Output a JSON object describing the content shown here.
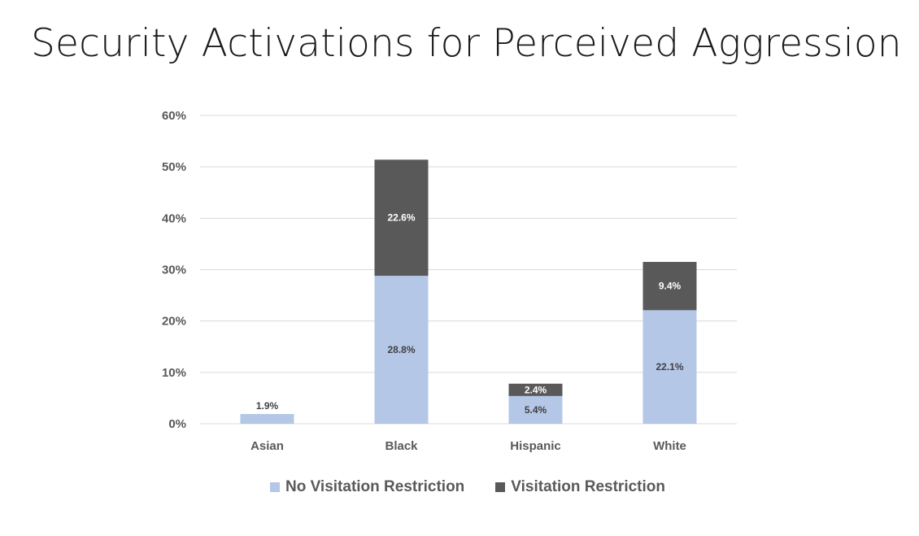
{
  "title": "Security Activations for Perceived Aggression",
  "colors": {
    "no_restriction": "#b4c7e7",
    "restriction": "#595959",
    "gridline": "#d9d9d9",
    "axis_text": "#595959"
  },
  "legend": [
    {
      "name": "No Visitation Restriction",
      "color": "#b4c7e7"
    },
    {
      "name": "Visitation Restriction",
      "color": "#595959"
    }
  ],
  "chart_data": {
    "type": "bar",
    "stacked": true,
    "title": "Security Activations for Perceived Aggression",
    "categories": [
      "Asian",
      "Black",
      "Hispanic",
      "White"
    ],
    "series": [
      {
        "name": "No Visitation Restriction",
        "values": [
          1.9,
          28.8,
          5.4,
          22.1
        ],
        "labels": [
          "1.9%",
          "28.8%",
          "5.4%",
          "22.1%"
        ]
      },
      {
        "name": "Visitation Restriction",
        "values": [
          0,
          22.6,
          2.4,
          9.4
        ],
        "labels": [
          "",
          "22.6%",
          "2.4%",
          "9.4%"
        ]
      }
    ],
    "ylim": [
      0,
      60
    ],
    "yticks": [
      "0%",
      "10%",
      "20%",
      "30%",
      "40%",
      "50%",
      "60%"
    ],
    "grid": true,
    "legend_position": "bottom"
  }
}
